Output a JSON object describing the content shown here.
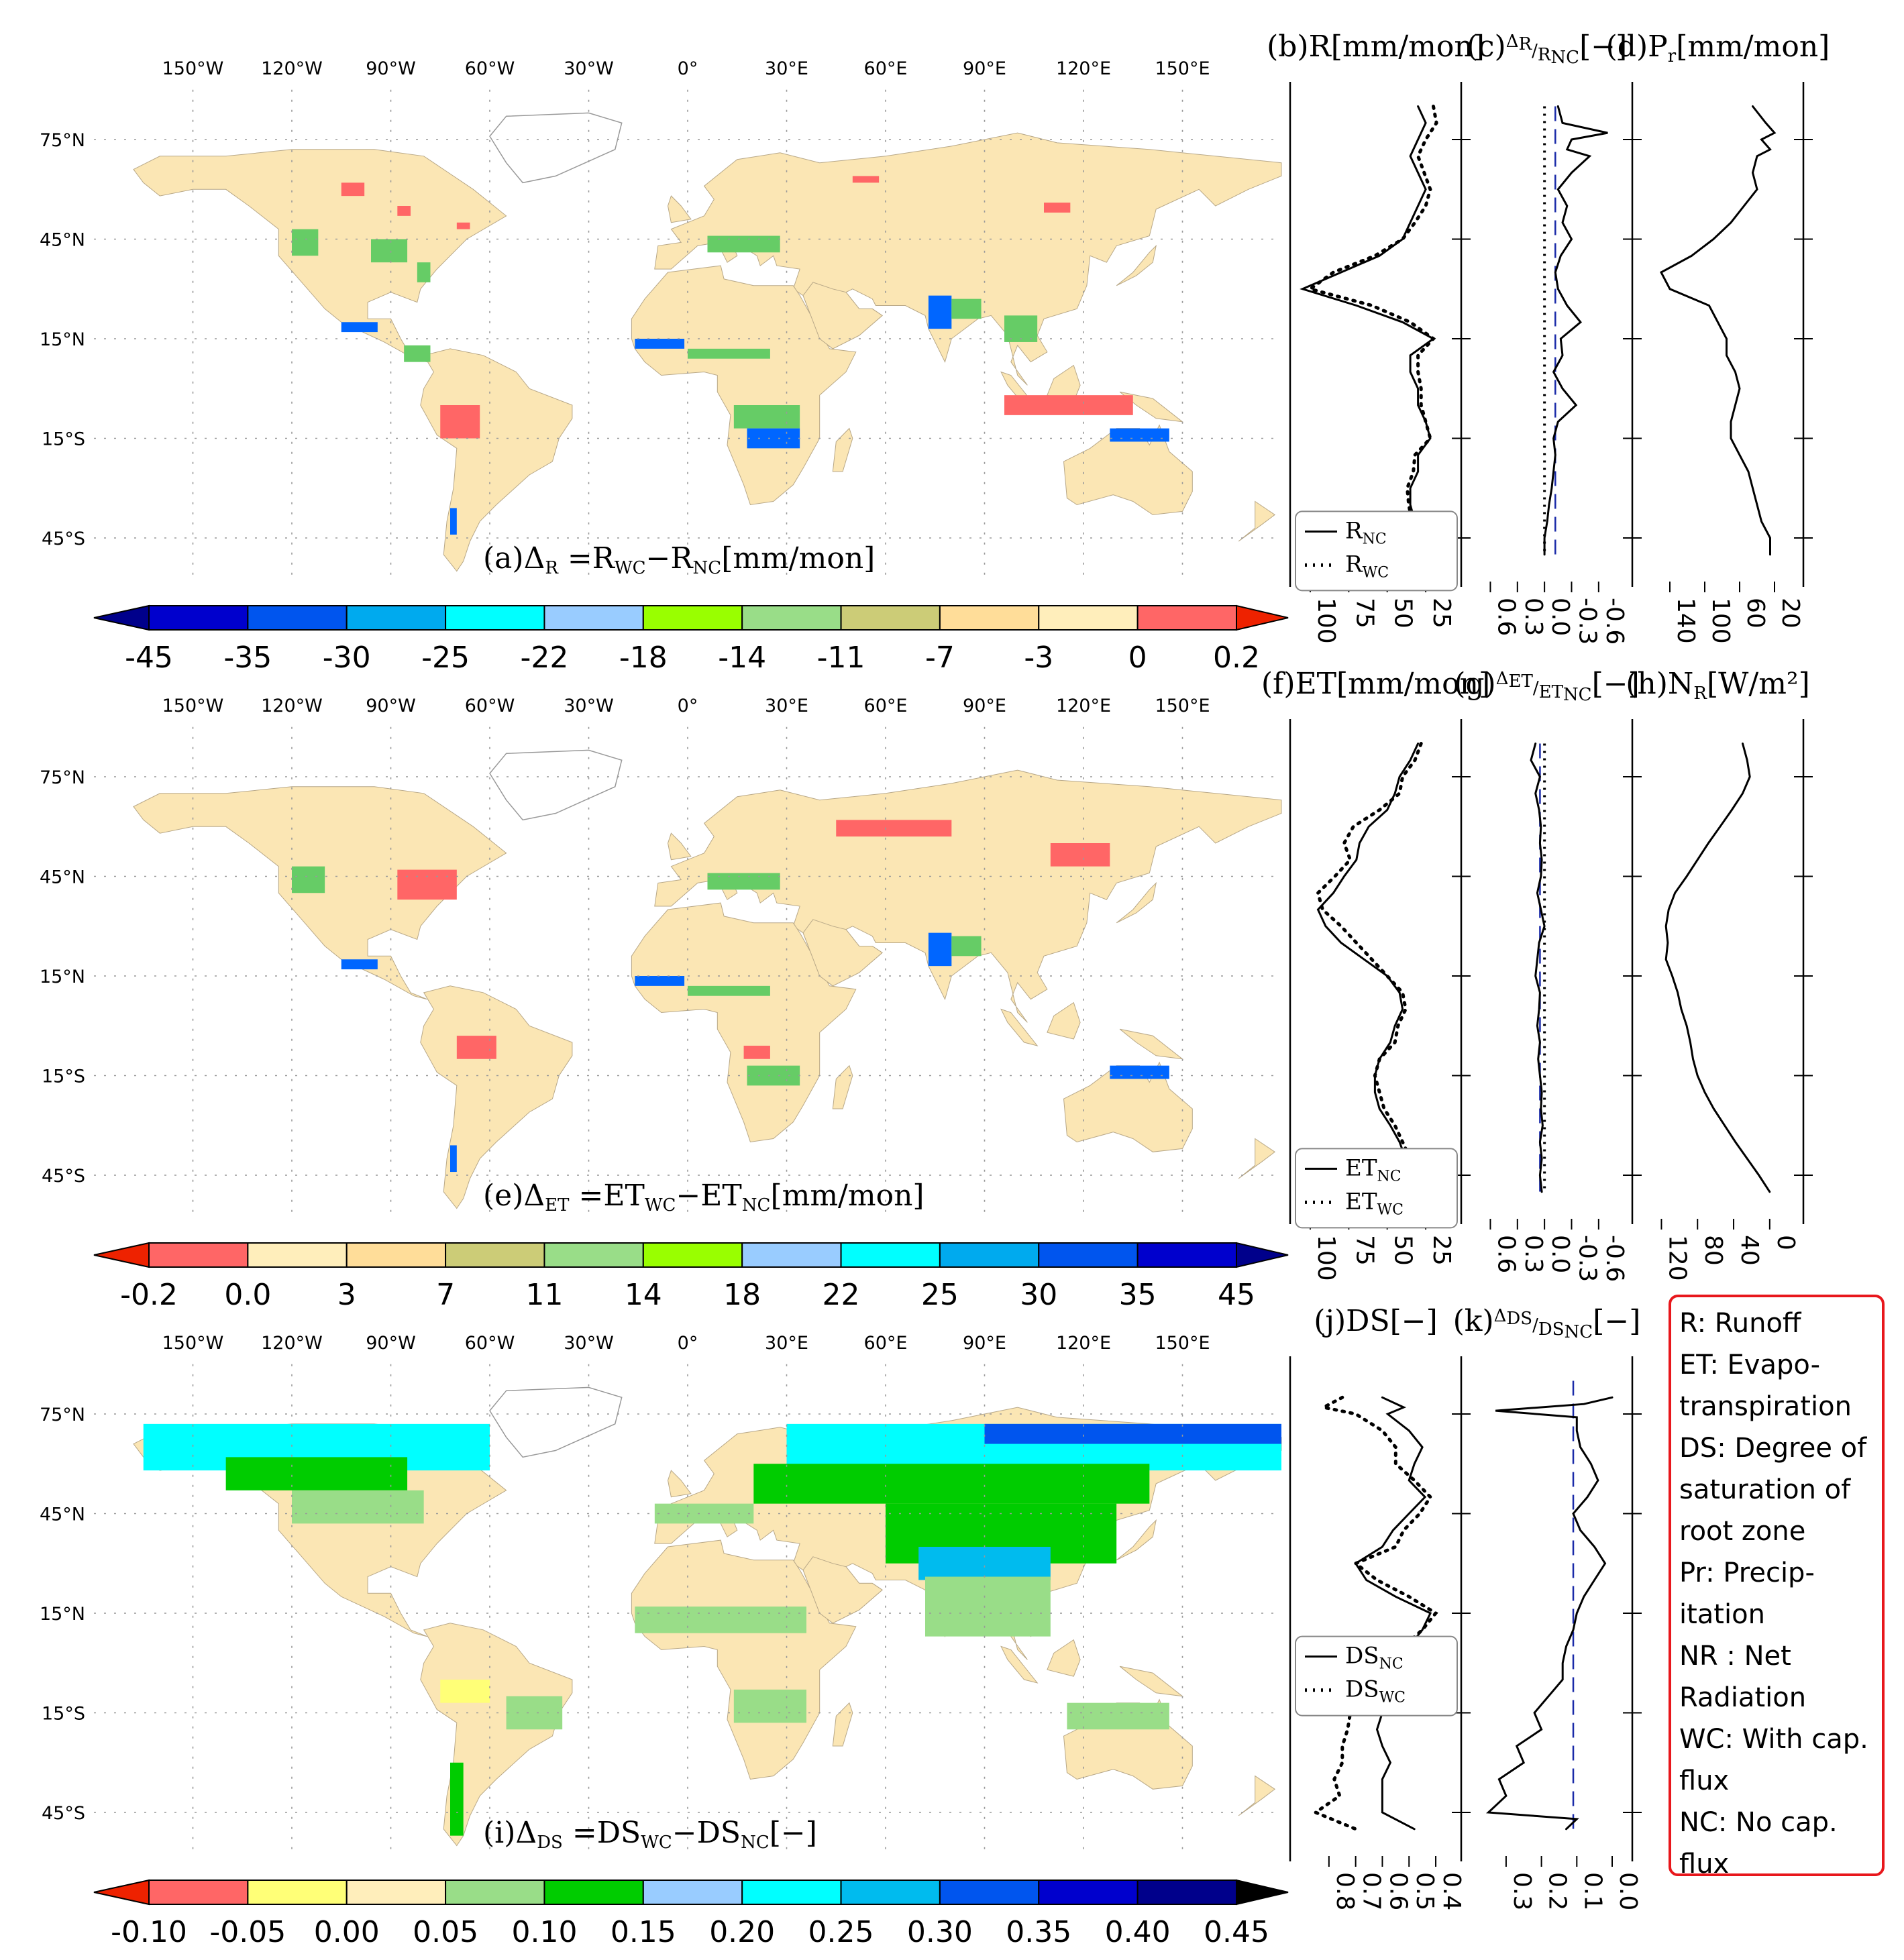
{
  "colors": {
    "land": "#fbe6b4",
    "red": "#ff6666",
    "blue": "#0066ff",
    "green": "#66cc66",
    "lime": "#99ff00",
    "palette_map": [
      "#00008b",
      "#0000cd",
      "#0055ee",
      "#00aaee",
      "#00ffff",
      "#99ccff",
      "#99ff00",
      "#99dd88",
      "#cccc77",
      "#ffdd99",
      "#ffeebb",
      "#ff6666",
      "#ee2200"
    ],
    "palette_ds": [
      "#ee2200",
      "#ff6666",
      "#ffff77",
      "#ffeebb",
      "#99dd88",
      "#00cc00",
      "#99ccff",
      "#00ffff",
      "#00bbee",
      "#0055ee",
      "#0000cd",
      "#00008b",
      "#000000"
    ]
  },
  "panels": {
    "a": {
      "title_pre": "(a)Δ",
      "title_sub": "R",
      "title_rest": " =R",
      "s1": "WC",
      "mid": "−R",
      "s2": "NC",
      "unit": "[mm/mon]"
    },
    "e": {
      "title_pre": "(e)Δ",
      "title_sub": "ET",
      "title_rest": " =ET",
      "s1": "WC",
      "mid": "−ET",
      "s2": "NC",
      "unit": "[mm/mon]"
    },
    "i": {
      "title_pre": "(i)Δ",
      "title_sub": "DS",
      "title_rest": " =DS",
      "s1": "WC",
      "mid": "−DS",
      "s2": "NC",
      "unit": "[−]"
    }
  },
  "map_axes": {
    "lon_labels": [
      "150°W",
      "120°W",
      "90°W",
      "60°W",
      "30°W",
      "0°",
      "30°E",
      "60°E",
      "90°E",
      "120°E",
      "150°E"
    ],
    "lat_labels": [
      "75°N",
      "45°N",
      "15°N",
      "15°S",
      "45°S"
    ]
  },
  "chart_data": [
    {
      "type": "heatmap",
      "id": "a",
      "colorbar_ticks": [
        "-45",
        "-35",
        "-30",
        "-25",
        "-22",
        "-18",
        "-14",
        "-11",
        "-7",
        "-3",
        "0",
        "0.2"
      ]
    },
    {
      "type": "heatmap",
      "id": "e",
      "colorbar_ticks": [
        "-0.2",
        "0.0",
        "3",
        "7",
        "11",
        "14",
        "18",
        "22",
        "25",
        "30",
        "35",
        "45"
      ]
    },
    {
      "type": "heatmap",
      "id": "i",
      "colorbar_ticks": [
        "-0.10",
        "-0.05",
        "0.00",
        "0.05",
        "0.10",
        "0.15",
        "0.20",
        "0.25",
        "0.30",
        "0.35",
        "0.40",
        "0.45"
      ]
    },
    {
      "type": "line",
      "id": "b",
      "title": "(b)R",
      "unit": "[mm/mon]",
      "xlim": [
        100,
        15
      ],
      "xticks": [
        "100",
        "75",
        "50",
        "25"
      ],
      "lat": [
        85,
        80,
        75,
        70,
        65,
        60,
        55,
        50,
        45,
        40,
        35,
        30,
        25,
        20,
        15,
        10,
        5,
        0,
        -5,
        -10,
        -15,
        -20,
        -25,
        -30,
        -35,
        -40,
        -45,
        -50
      ],
      "series": [
        {
          "name_main": "R",
          "name_sub": "NC",
          "style": "solid",
          "values": [
            30,
            25,
            30,
            35,
            30,
            25,
            30,
            35,
            40,
            55,
            80,
            105,
            70,
            40,
            20,
            35,
            35,
            30,
            30,
            25,
            22,
            30,
            30,
            35,
            35,
            32,
            28,
            28
          ]
        },
        {
          "name_main": "R",
          "name_sub": "WC",
          "style": "dotted",
          "values": [
            20,
            18,
            25,
            30,
            26,
            22,
            25,
            32,
            40,
            58,
            85,
            100,
            60,
            35,
            20,
            30,
            30,
            28,
            28,
            25,
            22,
            32,
            33,
            37,
            36,
            34,
            30,
            30
          ]
        }
      ]
    },
    {
      "type": "line",
      "id": "c",
      "title_pre": "(c)",
      "frac_num": "Δ",
      "frac_num_sub": "R",
      "frac_den": "R",
      "frac_den_sub": "NC",
      "unit": "[−]",
      "xlim": [
        0.7,
        -0.75
      ],
      "xticks": [
        "0.6",
        "0.3",
        "0.0",
        "-0.3",
        "-0.6"
      ],
      "lat": [
        85,
        80,
        77,
        75,
        72,
        70,
        65,
        60,
        55,
        50,
        45,
        40,
        35,
        30,
        25,
        20,
        15,
        10,
        5,
        0,
        -5,
        -10,
        -15,
        -20,
        -25,
        -30,
        -35,
        -40,
        -45,
        -50
      ],
      "series": [
        {
          "style": "solid",
          "values": [
            -0.15,
            -0.2,
            -0.7,
            -0.3,
            -0.25,
            -0.5,
            -0.3,
            -0.15,
            -0.25,
            -0.2,
            -0.3,
            -0.18,
            -0.12,
            -0.15,
            -0.25,
            -0.4,
            -0.18,
            -0.2,
            -0.1,
            -0.2,
            -0.35,
            -0.15,
            -0.1,
            -0.12,
            -0.1,
            -0.08,
            -0.05,
            -0.03,
            0.0,
            0.0
          ]
        }
      ],
      "ref_lines": [
        {
          "style": "dotted",
          "value": 0.0
        },
        {
          "style": "dashed",
          "value": -0.12
        }
      ]
    },
    {
      "type": "line",
      "id": "d",
      "title_main": "(d)P",
      "title_sub": "r",
      "unit": "[mm/mon]",
      "xlim": [
        160,
        10
      ],
      "xticks": [
        "140",
        "100",
        "60",
        "20"
      ],
      "lat": [
        85,
        80,
        77,
        75,
        72,
        70,
        65,
        60,
        55,
        50,
        45,
        40,
        35,
        30,
        25,
        20,
        15,
        10,
        5,
        0,
        -5,
        -10,
        -15,
        -20,
        -25,
        -30,
        -35,
        -40,
        -45,
        -50
      ],
      "series": [
        {
          "style": "solid",
          "values": [
            45,
            30,
            20,
            35,
            25,
            40,
            45,
            40,
            55,
            70,
            90,
            115,
            150,
            140,
            95,
            85,
            75,
            75,
            65,
            60,
            65,
            70,
            70,
            60,
            50,
            45,
            40,
            35,
            25,
            25
          ]
        }
      ]
    },
    {
      "type": "line",
      "id": "f",
      "title": "(f)ET",
      "unit": "[mm/mon]",
      "xlim": [
        100,
        15
      ],
      "xticks": [
        "100",
        "75",
        "50",
        "25"
      ],
      "lat": [
        85,
        80,
        75,
        70,
        65,
        60,
        55,
        50,
        45,
        40,
        35,
        30,
        25,
        20,
        15,
        10,
        5,
        0,
        -5,
        -10,
        -15,
        -20,
        -25,
        -30,
        -35,
        -40,
        -45,
        -50
      ],
      "series": [
        {
          "name_main": "ET",
          "name_sub": "NC",
          "style": "solid",
          "values": [
            30,
            35,
            42,
            45,
            50,
            62,
            68,
            70,
            78,
            85,
            95,
            90,
            80,
            65,
            50,
            42,
            40,
            45,
            48,
            55,
            58,
            58,
            55,
            48,
            42,
            38,
            30,
            25
          ]
        },
        {
          "name_main": "ET",
          "name_sub": "WC",
          "style": "dotted",
          "values": [
            28,
            32,
            40,
            42,
            55,
            72,
            78,
            74,
            84,
            95,
            92,
            80,
            70,
            60,
            50,
            40,
            38,
            43,
            45,
            55,
            58,
            55,
            52,
            45,
            40,
            35,
            28,
            23
          ]
        }
      ]
    },
    {
      "type": "line",
      "id": "g",
      "title_pre": "(g)",
      "frac_num": "Δ",
      "frac_num_sub": "ET",
      "frac_den": "ET",
      "frac_den_sub": "NC",
      "unit": "[−]",
      "xlim": [
        0.7,
        -0.75
      ],
      "xticks": [
        "0.6",
        "0.3",
        "0.0",
        "-0.3",
        "-0.6"
      ],
      "lat": [
        85,
        80,
        75,
        70,
        65,
        60,
        55,
        50,
        45,
        40,
        35,
        30,
        25,
        20,
        15,
        10,
        5,
        0,
        -5,
        -10,
        -15,
        -20,
        -25,
        -30,
        -35,
        -40,
        -45,
        -50
      ],
      "series": [
        {
          "style": "solid",
          "values": [
            0.1,
            0.15,
            0.05,
            0.1,
            0.06,
            0.04,
            0.05,
            0.03,
            0.04,
            0.08,
            0.04,
            0.0,
            0.06,
            0.08,
            0.1,
            0.05,
            0.06,
            0.08,
            0.05,
            0.07,
            0.05,
            0.03,
            0.04,
            0.02,
            0.05,
            0.03,
            0.05,
            0.03
          ]
        }
      ],
      "ref_lines": [
        {
          "style": "dotted",
          "value": 0.0
        },
        {
          "style": "dashed",
          "value": 0.05
        }
      ]
    },
    {
      "type": "line",
      "id": "h",
      "title_main": "(h)N",
      "title_sub": "R",
      "unit": "[W/m²]",
      "xlim": [
        130,
        -15
      ],
      "xticks": [
        "120",
        "80",
        "40",
        "0"
      ],
      "lat": [
        85,
        80,
        75,
        70,
        65,
        60,
        55,
        50,
        45,
        40,
        35,
        30,
        25,
        20,
        15,
        10,
        5,
        0,
        -5,
        -10,
        -15,
        -20,
        -25,
        -30,
        -35,
        -40,
        -45,
        -50
      ],
      "series": [
        {
          "style": "solid",
          "values": [
            30,
            25,
            22,
            30,
            42,
            55,
            68,
            80,
            92,
            105,
            112,
            115,
            113,
            115,
            108,
            102,
            98,
            92,
            88,
            85,
            80,
            72,
            62,
            50,
            38,
            25,
            12,
            0
          ]
        }
      ]
    },
    {
      "type": "line",
      "id": "j",
      "title": "(j)DS",
      "unit": "[−]",
      "xlim": [
        0.87,
        0.38
      ],
      "xticks": [
        "0.8",
        "0.7",
        "0.6",
        "0.5",
        "0.4"
      ],
      "lat": [
        80,
        77,
        75,
        70,
        65,
        60,
        55,
        50,
        45,
        40,
        35,
        30,
        25,
        20,
        15,
        10,
        5,
        0,
        -5,
        -10,
        -15,
        -20,
        -25,
        -30,
        -35,
        -40,
        -45,
        -50
      ],
      "series": [
        {
          "name_main": "DS",
          "name_sub": "NC",
          "style": "solid",
          "values": [
            0.6,
            0.52,
            0.58,
            0.5,
            0.45,
            0.48,
            0.5,
            0.44,
            0.5,
            0.56,
            0.6,
            0.7,
            0.66,
            0.55,
            0.42,
            0.45,
            0.5,
            0.55,
            0.58,
            0.62,
            0.6,
            0.62,
            0.6,
            0.57,
            0.6,
            0.6,
            0.6,
            0.48
          ]
        },
        {
          "name_main": "DS",
          "name_sub": "WC",
          "style": "dotted",
          "values": [
            0.75,
            0.82,
            0.7,
            0.6,
            0.55,
            0.55,
            0.48,
            0.42,
            0.46,
            0.52,
            0.55,
            0.7,
            0.62,
            0.5,
            0.4,
            0.45,
            0.52,
            0.6,
            0.65,
            0.7,
            0.72,
            0.73,
            0.75,
            0.75,
            0.78,
            0.76,
            0.85,
            0.7
          ]
        }
      ]
    },
    {
      "type": "line",
      "id": "k",
      "title_pre": "(k)",
      "frac_num": "Δ",
      "frac_num_sub": "DS",
      "frac_den": "DS",
      "frac_den_sub": "NC",
      "unit": "[−]",
      "xlim": [
        0.37,
        0.0
      ],
      "xticks": [
        "0.3",
        "0.2",
        "0.1",
        "0.0"
      ],
      "lat": [
        80,
        78,
        76,
        74,
        70,
        65,
        60,
        55,
        50,
        45,
        40,
        35,
        30,
        25,
        20,
        15,
        10,
        5,
        0,
        -5,
        -10,
        -15,
        -20,
        -25,
        -30,
        -35,
        -40,
        -45,
        -47,
        -50
      ],
      "series": [
        {
          "style": "solid",
          "values": [
            0.0,
            0.08,
            0.33,
            0.1,
            0.1,
            0.09,
            0.06,
            0.04,
            0.07,
            0.11,
            0.09,
            0.05,
            0.02,
            0.05,
            0.08,
            0.1,
            0.11,
            0.13,
            0.14,
            0.14,
            0.18,
            0.22,
            0.2,
            0.27,
            0.25,
            0.32,
            0.3,
            0.35,
            0.1,
            0.13
          ]
        }
      ],
      "ref_lines": [
        {
          "style": "dashed",
          "value": 0.11
        }
      ]
    }
  ],
  "legend_labels": {
    "b": [
      {
        "main": "R",
        "sub": "NC"
      },
      {
        "main": "R",
        "sub": "WC"
      }
    ],
    "f": [
      {
        "main": "ET",
        "sub": "NC"
      },
      {
        "main": "ET",
        "sub": "WC"
      }
    ],
    "j": [
      {
        "main": "DS",
        "sub": "NC"
      },
      {
        "main": "DS",
        "sub": "WC"
      }
    ]
  },
  "glossary": [
    "R: Runoff",
    "ET: Evapo-",
    "transpiration",
    "DS: Degree of",
    "saturation of",
    "root zone",
    "Pr: Precip-",
    "itation",
    "NR : Net",
    "Radiation",
    "WC: With cap.",
    "flux",
    "NC: No cap.",
    "flux"
  ]
}
